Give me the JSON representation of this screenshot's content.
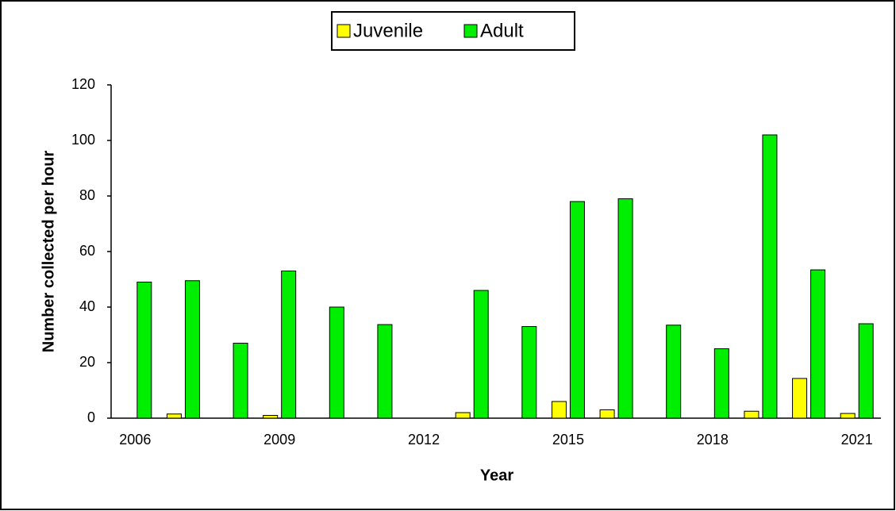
{
  "chart_data": {
    "type": "bar",
    "categories": [
      "2006",
      null,
      null,
      "2009",
      null,
      null,
      "2012",
      null,
      null,
      "2015",
      null,
      null,
      "2018",
      null,
      null,
      "2021"
    ],
    "series": [
      {
        "name": "Juvenile",
        "color": "#ffff00",
        "values": [
          0,
          1.5,
          0,
          1,
          0,
          0,
          null,
          2,
          0,
          6,
          3,
          0,
          0,
          2.5,
          14.3,
          1.7
        ]
      },
      {
        "name": "Adult",
        "color": "#00ee00",
        "values": [
          49,
          49.5,
          27,
          53,
          40,
          33.7,
          null,
          46,
          33,
          78,
          79,
          33.5,
          25,
          102,
          53.4,
          34
        ]
      }
    ],
    "x_label": "Year",
    "y_label": "Number collected per hour",
    "ylim": [
      0,
      120
    ],
    "yticks": [
      0,
      20,
      40,
      60,
      80,
      100,
      120
    ],
    "grid": false,
    "legend": "top"
  }
}
